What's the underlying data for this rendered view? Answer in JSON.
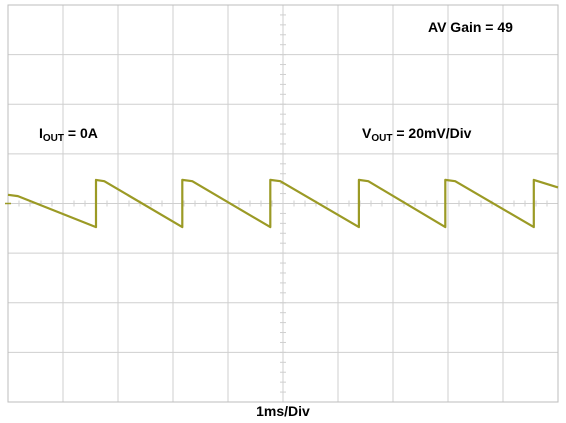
{
  "annotations": {
    "gain": "AV Gain = 49",
    "iout_main": "I",
    "iout_sub": "OUT",
    "iout_value": " = 0A",
    "vout_main": "V",
    "vout_sub": "OUT",
    "vout_value": " = 20mV/Div"
  },
  "timebase_label": "1ms/Div",
  "colors": {
    "trace": "#9b9a25",
    "grid": "#cfcfcf",
    "frame": "#bdbdbd",
    "background": "#ffffff"
  },
  "chart_data": {
    "type": "line",
    "title": "",
    "xlabel": "1ms/Div",
    "ylabel": "",
    "x_unit": "ms",
    "y_unit": "mV",
    "x_divisions": 10,
    "y_divisions": 8,
    "x_per_div": 1,
    "y_per_div": 20,
    "xlim": [
      0,
      10
    ],
    "ylim": [
      -80,
      80
    ],
    "grid": true,
    "series": [
      {
        "x": [
          0,
          0.18,
          1.6,
          1.6,
          1.75,
          3.17,
          3.17,
          3.35,
          4.77,
          4.77,
          4.95,
          6.38,
          6.38,
          6.55,
          7.95,
          7.95,
          8.13,
          9.56,
          9.56,
          10.0
        ],
        "y": [
          3.5,
          3.0,
          -9.5,
          9.5,
          9.0,
          -9.5,
          9.5,
          9.0,
          -9.5,
          9.5,
          9.0,
          -9.5,
          9.5,
          9.0,
          -9.5,
          9.5,
          9.0,
          -9.5,
          9.5,
          6.5
        ]
      }
    ]
  }
}
